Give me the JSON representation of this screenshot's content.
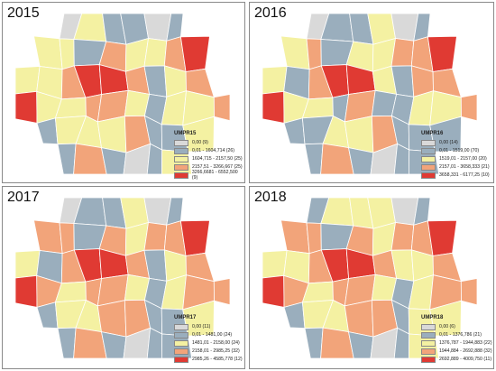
{
  "colors": {
    "c0": "#d9d9d9",
    "c1": "#9aaebd",
    "c2": "#f4f1a2",
    "c3": "#f2a47a",
    "c4": "#e03a33"
  },
  "panels": [
    {
      "year": "2015",
      "legend_title": "UMPR15",
      "legend": [
        "0,00 (9)",
        "0,01 - 1604,714 (26)",
        "1604,715 - 2157,50 (25)",
        "2157,51 - 3266,667 (25)",
        "3266,6681 - 6552,500 (9)"
      ],
      "classes": [
        1,
        1,
        0,
        2,
        1,
        1,
        0,
        1,
        2,
        1,
        1,
        2,
        2,
        1,
        3,
        2,
        2,
        3,
        4,
        3,
        2,
        2,
        3,
        4,
        4,
        3,
        1,
        2,
        3,
        4,
        4,
        2,
        2,
        3,
        3,
        2,
        1,
        2,
        2,
        3,
        1,
        1,
        2,
        2,
        2,
        3,
        1,
        1,
        2,
        2,
        2,
        0,
        1,
        3,
        1,
        0,
        1,
        2,
        2,
        0
      ]
    },
    {
      "year": "2016",
      "legend_title": "UMPR16",
      "legend": [
        "0,00 (14)",
        "0,01 - 1519,00 (70)",
        "1519,01 - 2157,00 (20)",
        "2157,01 - 3658,333 (21)",
        "3658,331 - 6177,25 (10)"
      ],
      "classes": [
        1,
        1,
        0,
        1,
        1,
        2,
        0,
        1,
        1,
        1,
        2,
        2,
        3,
        1,
        2,
        2,
        3,
        3,
        4,
        3,
        2,
        1,
        3,
        4,
        4,
        2,
        1,
        3,
        3,
        4,
        4,
        2,
        2,
        1,
        3,
        1,
        1,
        2,
        2,
        3,
        1,
        1,
        1,
        2,
        2,
        3,
        1,
        1,
        1,
        2,
        2,
        0,
        1,
        3,
        1,
        0,
        1,
        1,
        2,
        0
      ]
    },
    {
      "year": "2017",
      "legend_title": "UMPR17",
      "legend": [
        "0,00 (11)",
        "0,01 - 1481,00 (24)",
        "1481,01 - 2158,00 (24)",
        "2158,01 - 2985,25 (32)",
        "2985,26 - 4585,778 (12)"
      ],
      "classes": [
        1,
        1,
        0,
        1,
        1,
        2,
        0,
        1,
        2,
        1,
        2,
        3,
        3,
        1,
        3,
        2,
        3,
        3,
        4,
        3,
        2,
        1,
        3,
        4,
        4,
        3,
        1,
        2,
        3,
        4,
        4,
        3,
        2,
        3,
        3,
        2,
        1,
        2,
        3,
        3,
        1,
        1,
        2,
        2,
        3,
        3,
        1,
        1,
        2,
        2,
        3,
        0,
        1,
        3,
        1,
        0,
        1,
        1,
        3,
        0
      ]
    },
    {
      "year": "2018",
      "legend_title": "UMPR18",
      "legend": [
        "0,00 (6)",
        "0,01 - 1376,786 (21)",
        "1376,787 - 1944,883 (22)",
        "1944,884 - 2692,888 (32)",
        "2692,889 - 4009,750 (11)"
      ],
      "classes": [
        1,
        1,
        1,
        2,
        2,
        2,
        0,
        1,
        2,
        2,
        2,
        3,
        3,
        1,
        3,
        2,
        3,
        3,
        4,
        3,
        2,
        2,
        3,
        4,
        4,
        3,
        2,
        2,
        3,
        4,
        4,
        3,
        2,
        3,
        3,
        2,
        1,
        2,
        3,
        3,
        2,
        1,
        2,
        2,
        3,
        3,
        1,
        2,
        2,
        2,
        3,
        1,
        1,
        3,
        1,
        0,
        1,
        2,
        3,
        0
      ]
    }
  ]
}
